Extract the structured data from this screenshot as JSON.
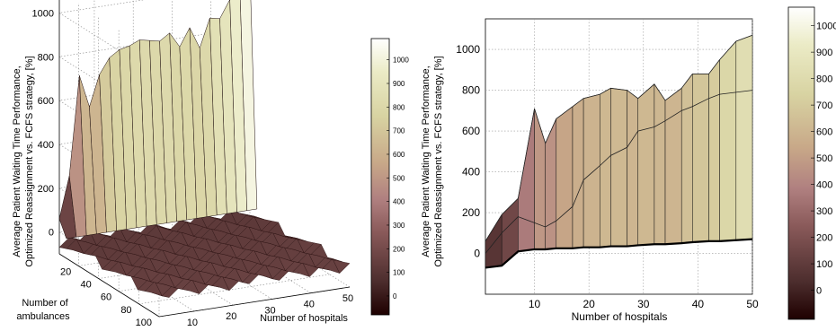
{
  "chart_data": [
    {
      "type": "surface3d",
      "zlabel_line1": "Average Patient Waiting Time Performance,",
      "zlabel_line2": "Optimized Reassignment vs. FCFS strategy, [%]",
      "xlabel": "Number of hospitals",
      "ylabel_line1": "Number of",
      "ylabel_line2": "ambulances",
      "x_ticks": [
        10,
        20,
        30,
        40,
        50
      ],
      "y_ticks": [
        20,
        40,
        60,
        80,
        100
      ],
      "z_ticks": [
        0,
        200,
        400,
        600,
        800,
        1000
      ],
      "xlim": [
        1,
        50
      ],
      "ylim": [
        1,
        100
      ],
      "zlim": [
        -100,
        1100
      ],
      "colorbar_ticks": [
        0,
        100,
        200,
        300,
        400,
        500,
        600,
        700,
        800,
        900,
        1000
      ],
      "colormap": "pink",
      "ridge_at_max_ambulances": [
        60,
        250,
        700,
        550,
        690,
        760,
        790,
        800,
        820,
        810,
        800,
        830,
        760,
        840,
        740,
        870,
        860,
        940,
        990,
        1060
      ],
      "grid": true
    },
    {
      "type": "surface_side_view",
      "ylabel_line1": "Average Patient Waiting Time Performance,",
      "ylabel_line2": "Optimized Reassignment vs. FCFS strategy, [%]",
      "xlabel": "Number of hospitals",
      "x_ticks": [
        10,
        20,
        30,
        40,
        50
      ],
      "y_ticks": [
        0,
        200,
        400,
        600,
        800,
        1000
      ],
      "xlim": [
        1,
        50
      ],
      "ylim": [
        -200,
        1150
      ],
      "colorbar_ticks": [
        0,
        100,
        200,
        300,
        400,
        500,
        600,
        700,
        800,
        900,
        1000
      ],
      "colormap": "pink",
      "x": [
        1,
        4,
        7,
        10,
        12,
        14,
        17,
        19,
        22,
        24,
        27,
        29,
        32,
        34,
        37,
        39,
        42,
        44,
        47,
        50
      ],
      "series": [
        {
          "values": [
            60,
            190,
            270,
            710,
            540,
            660,
            720,
            760,
            780,
            810,
            800,
            760,
            830,
            750,
            810,
            880,
            880,
            950,
            1040,
            1070
          ]
        },
        {
          "values": [
            0,
            100,
            180,
            150,
            130,
            160,
            230,
            360,
            430,
            480,
            520,
            600,
            620,
            650,
            700,
            720,
            760,
            780,
            790,
            800
          ]
        },
        {
          "values": [
            -70,
            -60,
            10,
            20,
            20,
            25,
            25,
            30,
            30,
            35,
            35,
            40,
            45,
            45,
            50,
            55,
            60,
            60,
            65,
            70
          ]
        }
      ],
      "grid": true
    }
  ]
}
